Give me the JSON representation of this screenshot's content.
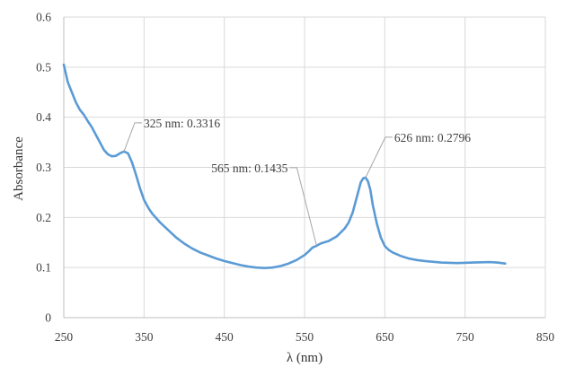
{
  "chart_data": {
    "type": "line",
    "xlabel": "λ (nm)",
    "ylabel": "Absorbance",
    "xlim": [
      250,
      850
    ],
    "ylim": [
      0,
      0.6
    ],
    "x_ticks": [
      250,
      350,
      450,
      550,
      650,
      750,
      850
    ],
    "y_ticks": [
      0,
      0.1,
      0.2,
      0.3,
      0.4,
      0.5,
      0.6
    ],
    "x_tick_labels": [
      "250",
      "350",
      "450",
      "550",
      "650",
      "750",
      "850"
    ],
    "y_tick_labels": [
      "0",
      "0.1",
      "0.2",
      "0.3",
      "0.4",
      "0.5",
      "0.6"
    ],
    "grid": true,
    "legend": "none",
    "series": [
      {
        "color": "#5b9bd5",
        "x": [
          250,
          255,
          260,
          265,
          270,
          275,
          280,
          285,
          290,
          295,
          300,
          305,
          310,
          315,
          320,
          325,
          330,
          335,
          340,
          345,
          350,
          355,
          360,
          370,
          380,
          390,
          400,
          410,
          420,
          430,
          440,
          450,
          460,
          470,
          480,
          490,
          500,
          510,
          520,
          530,
          540,
          550,
          555,
          560,
          565,
          570,
          580,
          590,
          600,
          605,
          610,
          615,
          620,
          623,
          626,
          629,
          632,
          635,
          640,
          645,
          650,
          655,
          660,
          670,
          680,
          690,
          700,
          720,
          740,
          760,
          780,
          790,
          800
        ],
        "y": [
          0.505,
          0.47,
          0.45,
          0.43,
          0.415,
          0.405,
          0.392,
          0.38,
          0.365,
          0.35,
          0.335,
          0.326,
          0.322,
          0.323,
          0.328,
          0.3316,
          0.328,
          0.31,
          0.285,
          0.258,
          0.235,
          0.22,
          0.208,
          0.19,
          0.175,
          0.16,
          0.148,
          0.138,
          0.13,
          0.124,
          0.118,
          0.113,
          0.109,
          0.105,
          0.102,
          0.1,
          0.099,
          0.1,
          0.103,
          0.108,
          0.115,
          0.125,
          0.132,
          0.14,
          0.1435,
          0.148,
          0.153,
          0.162,
          0.178,
          0.19,
          0.21,
          0.24,
          0.27,
          0.278,
          0.2796,
          0.272,
          0.255,
          0.225,
          0.188,
          0.16,
          0.143,
          0.135,
          0.13,
          0.123,
          0.118,
          0.115,
          0.113,
          0.11,
          0.109,
          0.11,
          0.111,
          0.11,
          0.108
        ]
      }
    ],
    "annotations": [
      {
        "text": "325 nm: 0.3316",
        "x": 325,
        "y": 0.3316
      },
      {
        "text": "565 nm: 0.1435",
        "x": 565,
        "y": 0.1435
      },
      {
        "text": "626 nm: 0.2796",
        "x": 626,
        "y": 0.2796
      }
    ]
  }
}
